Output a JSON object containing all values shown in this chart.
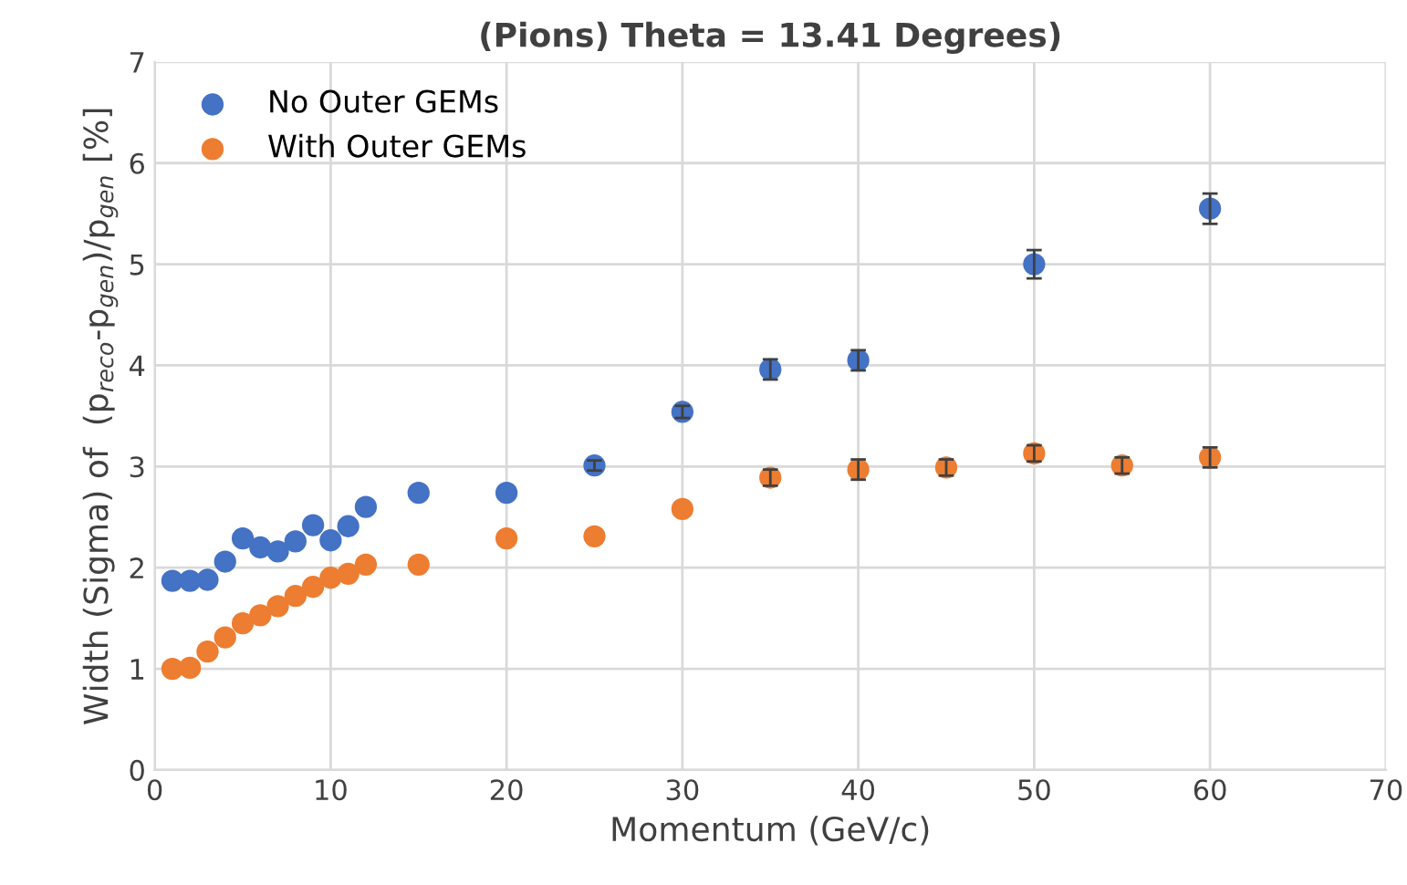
{
  "chart_data": {
    "type": "scatter",
    "title": "(Pions) Theta = 13.41 Degrees)",
    "xlabel": "Momentum (GeV/c)",
    "ylabel": "Width (Sigma) of  (p$_{reco}$-p$_{gen}$)/p$_{gen}$ [%]",
    "series": [
      {
        "name": "No Outer GEMs",
        "color": "#4472c4",
        "x": [
          1,
          2,
          3,
          4,
          5,
          6,
          7,
          8,
          9,
          10,
          11,
          12,
          15,
          20,
          25,
          30,
          35,
          40,
          50,
          60
        ],
        "values": [
          1.87,
          1.87,
          1.88,
          2.06,
          2.29,
          2.2,
          2.16,
          2.26,
          2.42,
          2.27,
          2.41,
          2.6,
          2.74,
          2.74,
          3.01,
          3.54,
          3.96,
          4.05,
          5.0,
          5.55
        ],
        "errors": [
          null,
          null,
          null,
          null,
          null,
          null,
          null,
          null,
          null,
          null,
          null,
          null,
          null,
          null,
          0.05,
          0.06,
          0.1,
          0.1,
          0.14,
          0.15
        ]
      },
      {
        "name": "With Outer GEMs",
        "color": "#ed7d31",
        "x": [
          1,
          2,
          3,
          4,
          5,
          6,
          7,
          8,
          9,
          10,
          11,
          12,
          15,
          20,
          25,
          30,
          35,
          40,
          45,
          50,
          55,
          60
        ],
        "values": [
          1.0,
          1.01,
          1.17,
          1.31,
          1.45,
          1.53,
          1.62,
          1.72,
          1.81,
          1.9,
          1.94,
          2.03,
          2.03,
          2.29,
          2.31,
          2.58,
          2.89,
          2.97,
          2.99,
          3.13,
          3.01,
          3.09
        ],
        "errors": [
          null,
          null,
          null,
          null,
          null,
          null,
          null,
          null,
          null,
          null,
          null,
          null,
          null,
          null,
          null,
          null,
          0.08,
          0.1,
          0.08,
          0.08,
          0.08,
          0.1
        ]
      }
    ],
    "xlim": [
      0,
      70
    ],
    "xticks": [
      0,
      10,
      20,
      30,
      40,
      50,
      60,
      70
    ],
    "ylim": [
      0,
      7
    ],
    "yticks": [
      0,
      1,
      2,
      3,
      4,
      5,
      6,
      7
    ],
    "grid": true,
    "legend": "top left",
    "marker": "circle"
  }
}
